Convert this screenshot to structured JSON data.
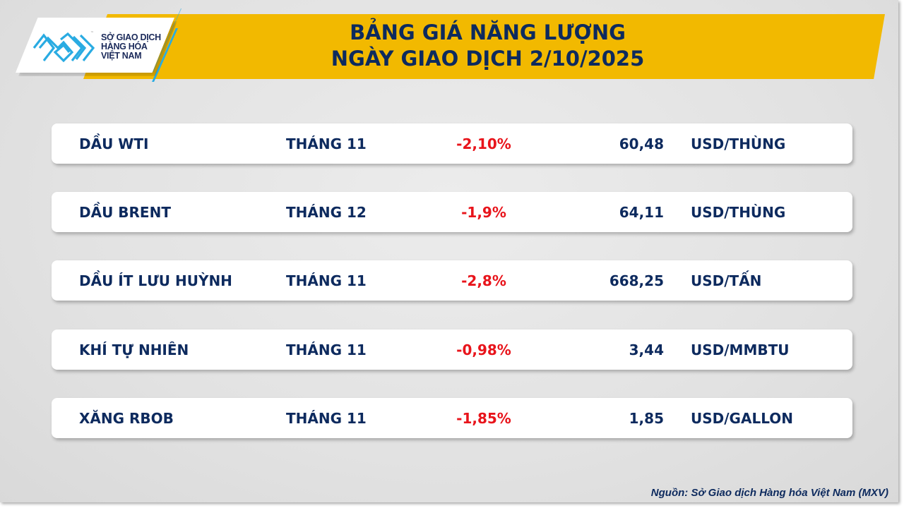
{
  "logo": {
    "lines": [
      "SỞ GIAO DỊCH",
      "HÀNG HÓA",
      "VIỆT NAM"
    ],
    "tm": "™",
    "color": "#29abe2"
  },
  "header": {
    "title_line1": "BẢNG GIÁ NĂNG LƯỢNG",
    "title_line2": "NGÀY GIAO DỊCH 2/10/2025",
    "banner_color": "#f2b900"
  },
  "rows": [
    {
      "name": "DẦU WTI",
      "month": "THÁNG 11",
      "change": "-2,10%",
      "price": "60,48",
      "unit": "USD/THÙNG"
    },
    {
      "name": "DẦU BRENT",
      "month": "THÁNG 12",
      "change": "-1,9%",
      "price": "64,11",
      "unit": "USD/THÙNG"
    },
    {
      "name": "DẦU ÍT LƯU HUỲNH",
      "month": "THÁNG 11",
      "change": "-2,8%",
      "price": "668,25",
      "unit": "USD/TẤN"
    },
    {
      "name": "KHÍ TỰ NHIÊN",
      "month": "THÁNG 11",
      "change": "-0,98%",
      "price": "3,44",
      "unit": "USD/MMBTU"
    },
    {
      "name": "XĂNG RBOB",
      "month": "THÁNG 11",
      "change": "-1,85%",
      "price": "1,85",
      "unit": "USD/GALLON"
    }
  ],
  "colors": {
    "text": "#0d2a5e",
    "negative": "#e8141b"
  },
  "source": "Nguồn: Sở Giao dịch Hàng hóa Việt Nam (MXV)"
}
